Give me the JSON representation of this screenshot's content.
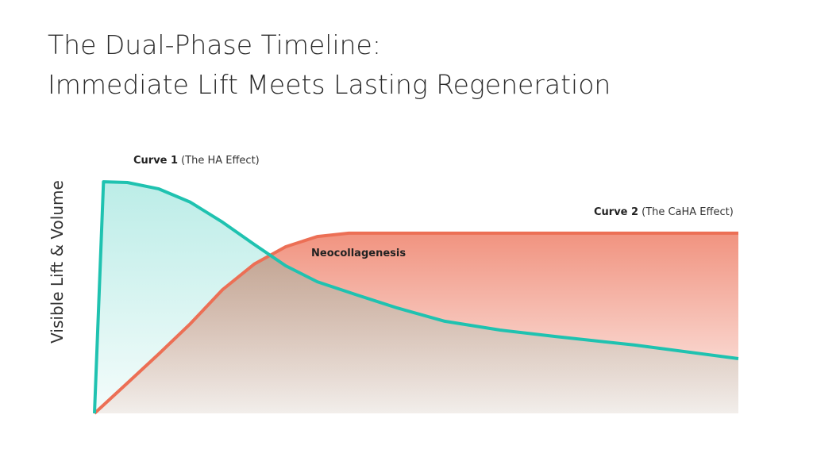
{
  "chart_data": {
    "type": "line",
    "title": [
      "The Dual-Phase Timeline:",
      "Immediate Lift Meets Lasting Regeneration"
    ],
    "ylabel": "Visible Lift & Volume",
    "xlim": [
      0,
      100
    ],
    "ylim": [
      0,
      100
    ],
    "series": [
      {
        "name": "Curve 1",
        "note": "(The HA Effect)",
        "color": "#1fc2b0",
        "x": [
          0,
          1.4,
          5.1,
          10,
          14.9,
          19.9,
          24.8,
          29.7,
          34.6,
          40.8,
          47,
          54.4,
          63,
          71.6,
          83.9,
          100
        ],
        "values": [
          0,
          97.3,
          97,
          94.3,
          88.7,
          80.3,
          71,
          62,
          55.3,
          49.7,
          44.3,
          38.7,
          35,
          32.3,
          28.7,
          23
        ]
      },
      {
        "name": "Curve 2",
        "note": "(The CaHA Effect)",
        "color": "#ec6f55",
        "x": [
          0,
          5.1,
          10,
          14.9,
          19.9,
          24.8,
          29.7,
          34.6,
          39.5,
          100
        ],
        "values": [
          0,
          12.7,
          25,
          37.7,
          52,
          62.7,
          70,
          74.3,
          75.7,
          75.7
        ]
      }
    ],
    "annotations": [
      "Neocollagenesis"
    ]
  }
}
